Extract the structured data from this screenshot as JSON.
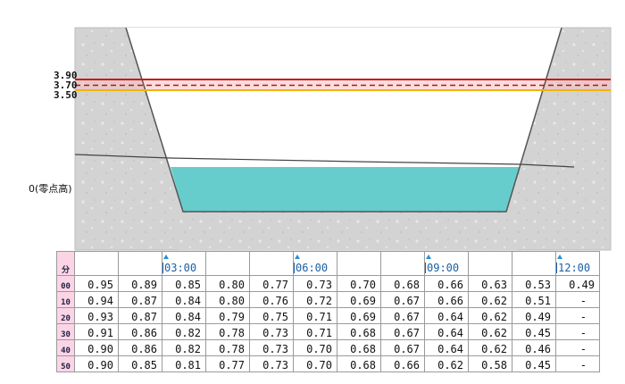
{
  "section": {
    "level_labels": {
      "high": "3.90",
      "mid": "3.70",
      "low": "3.50",
      "zero": "0(零点高)"
    },
    "colors": {
      "bank": "#d2d2d2",
      "water": "#66cdcc",
      "high_line": "#d01818",
      "mid_line": "#c01010",
      "low_line": "#f2b400",
      "band": "#f5c6c6"
    }
  },
  "table": {
    "header_label": "分",
    "time_marks": [
      {
        "col": 2,
        "label": "03:00"
      },
      {
        "col": 5,
        "label": "06:00"
      },
      {
        "col": 8,
        "label": "09:00"
      },
      {
        "col": 11,
        "label": "12:00"
      }
    ],
    "rows": [
      {
        "minute": "00",
        "values": [
          "0.95",
          "0.89",
          "0.85",
          "0.80",
          "0.77",
          "0.73",
          "0.70",
          "0.68",
          "0.66",
          "0.63",
          "0.53",
          "0.49"
        ]
      },
      {
        "minute": "10",
        "values": [
          "0.94",
          "0.87",
          "0.84",
          "0.80",
          "0.76",
          "0.72",
          "0.69",
          "0.67",
          "0.66",
          "0.62",
          "0.51",
          "-"
        ]
      },
      {
        "minute": "20",
        "values": [
          "0.93",
          "0.87",
          "0.84",
          "0.79",
          "0.75",
          "0.71",
          "0.69",
          "0.67",
          "0.64",
          "0.62",
          "0.49",
          "-"
        ]
      },
      {
        "minute": "30",
        "values": [
          "0.91",
          "0.86",
          "0.82",
          "0.78",
          "0.73",
          "0.71",
          "0.68",
          "0.67",
          "0.64",
          "0.62",
          "0.45",
          "-"
        ]
      },
      {
        "minute": "40",
        "values": [
          "0.90",
          "0.86",
          "0.82",
          "0.78",
          "0.73",
          "0.70",
          "0.68",
          "0.67",
          "0.64",
          "0.62",
          "0.46",
          "-"
        ]
      },
      {
        "minute": "50",
        "values": [
          "0.90",
          "0.85",
          "0.81",
          "0.77",
          "0.73",
          "0.70",
          "0.68",
          "0.66",
          "0.62",
          "0.58",
          "0.45",
          "-"
        ]
      }
    ]
  }
}
